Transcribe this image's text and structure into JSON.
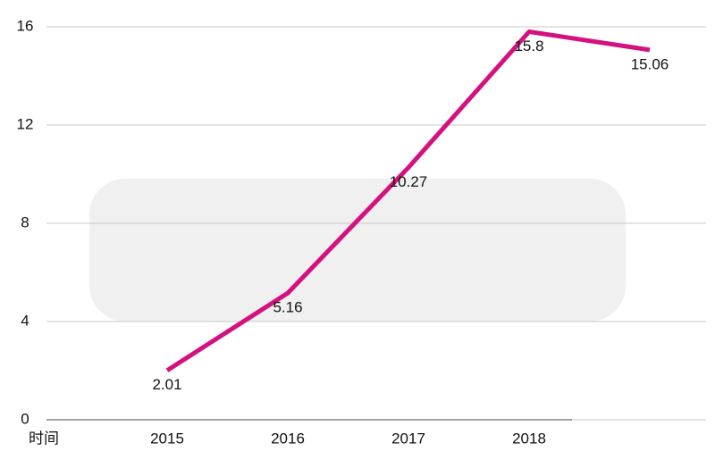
{
  "chart_data": {
    "type": "line",
    "x_label": "时间",
    "categories": [
      "2015",
      "2016",
      "2017",
      "2018",
      null
    ],
    "values": [
      2.01,
      5.16,
      10.27,
      15.8,
      15.06
    ],
    "color": "#d4117f",
    "ylim": [
      0,
      16
    ],
    "yticks": [
      0,
      4,
      8,
      12,
      16
    ],
    "grid": true
  }
}
